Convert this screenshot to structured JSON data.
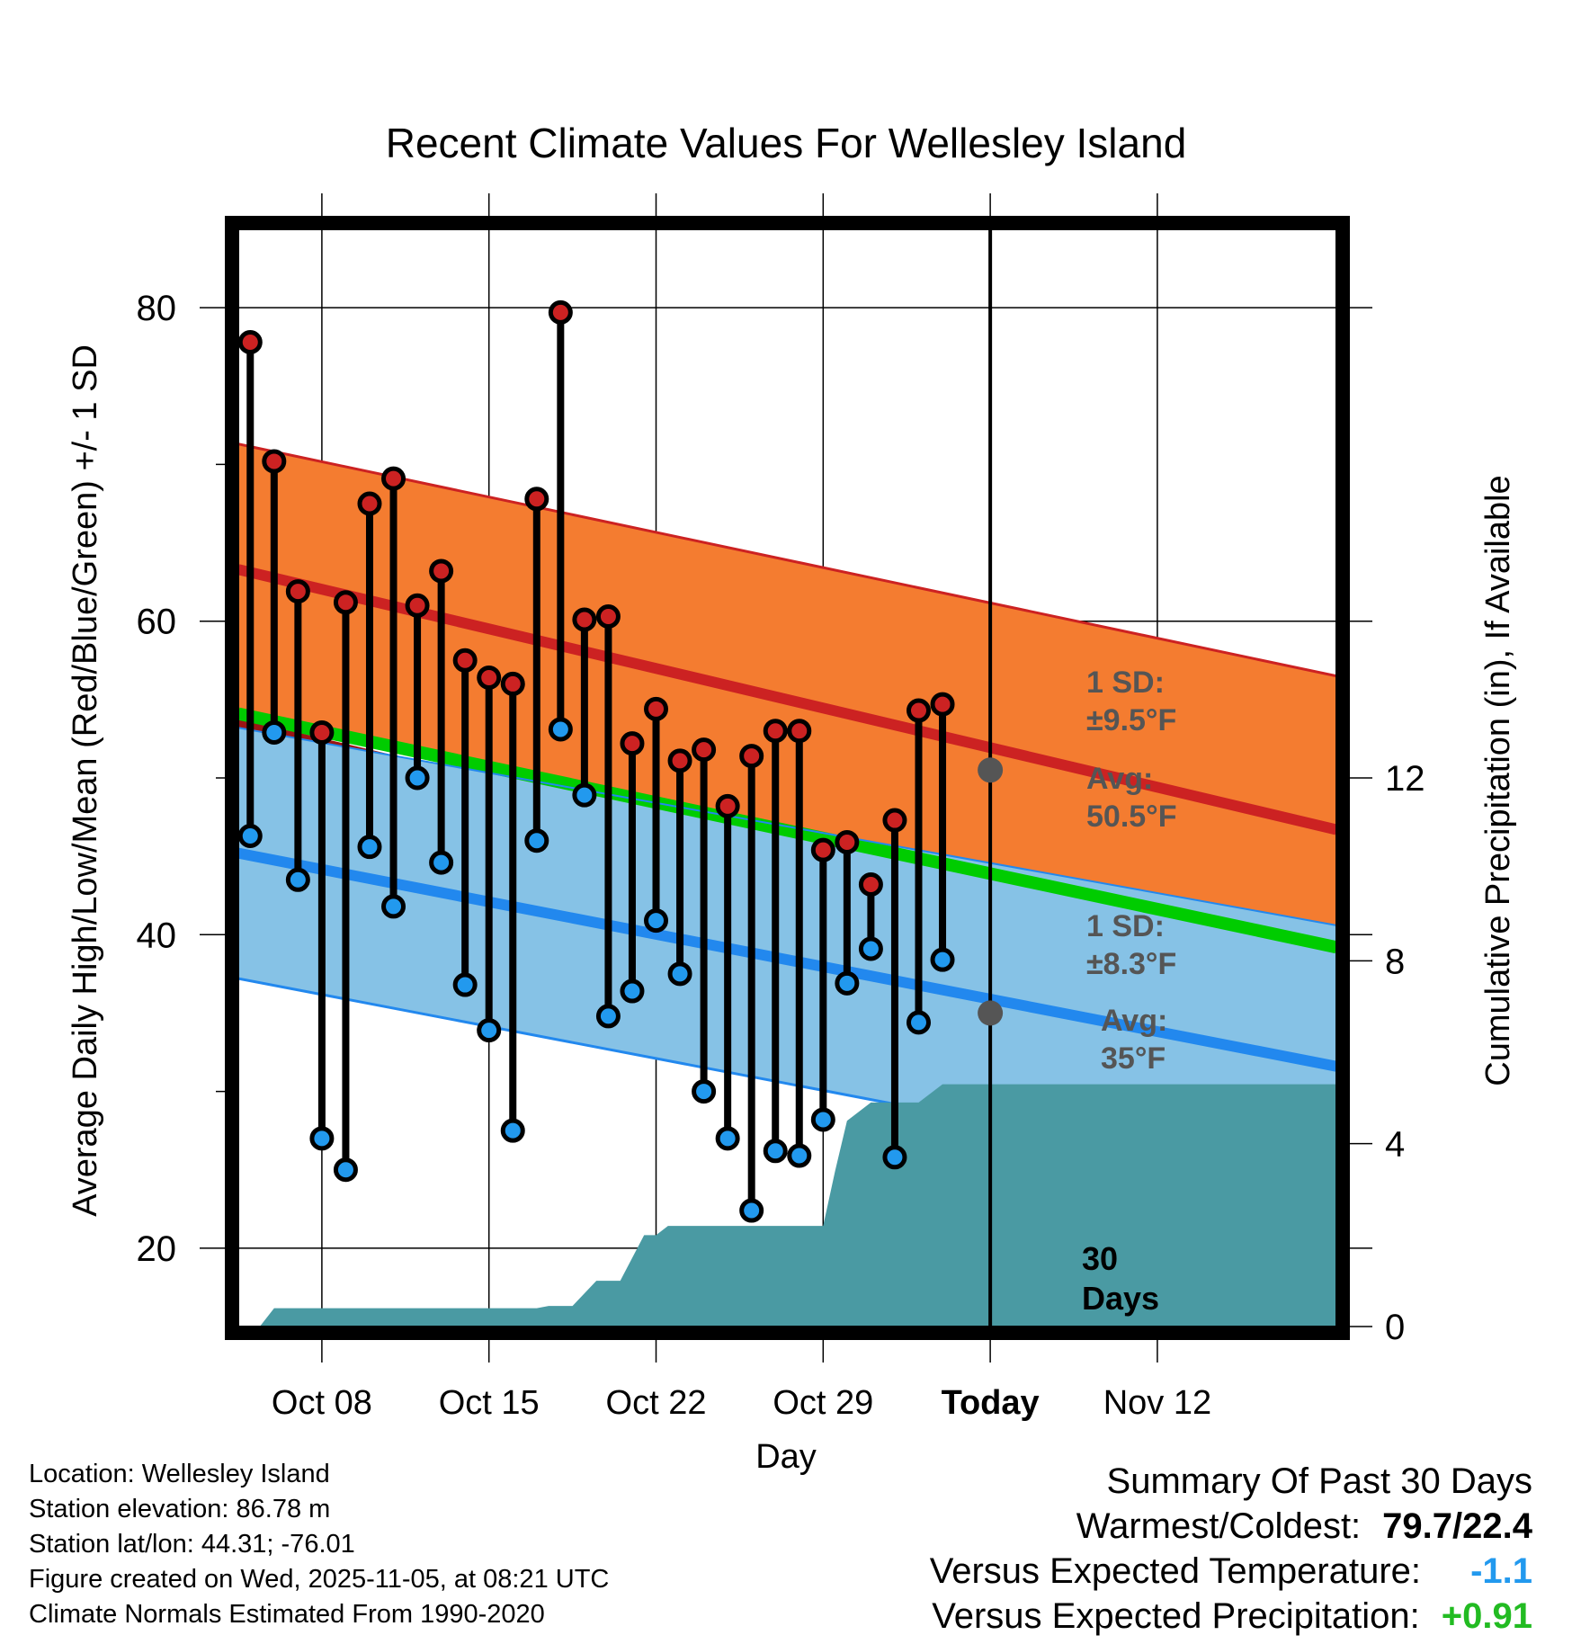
{
  "chart_data": {
    "type": "line",
    "title": "Recent Climate Values For Wellesley Island",
    "xlabel": "Day",
    "ylabel": "Average Daily High/Low/Mean (Red/Blue/Green) +/- 1 SD",
    "y2label": "Cumulative Precipitation (in), If Available",
    "ylim": [
      15,
      85
    ],
    "y2lim": [
      0,
      24
    ],
    "xlim": [
      4.5,
      50.5
    ],
    "grid": true,
    "yticks": [
      20,
      40,
      60,
      80
    ],
    "y2ticks": [
      0,
      4,
      8,
      12
    ],
    "x_tick_days": [
      8,
      15,
      22,
      29,
      36,
      43
    ],
    "x_tick_labels": [
      "Oct 08",
      "Oct 15",
      "Oct 22",
      "Oct 29",
      "Today",
      "Nov 12"
    ],
    "today_day": 36,
    "days": [
      5,
      6,
      7,
      8,
      9,
      10,
      11,
      12,
      13,
      14,
      15,
      16,
      17,
      18,
      19,
      20,
      21,
      22,
      23,
      24,
      25,
      26,
      27,
      28,
      29,
      30,
      31,
      32,
      33,
      34,
      35
    ],
    "series": [
      {
        "name": "Daily High",
        "color": "#cc2222",
        "values": [
          77.8,
          70.2,
          61.9,
          52.9,
          61.2,
          67.5,
          69.1,
          61.0,
          63.2,
          57.5,
          56.4,
          56.0,
          67.8,
          79.7,
          60.1,
          60.3,
          52.2,
          54.4,
          51.1,
          51.8,
          48.2,
          51.4,
          53.0,
          53.0,
          45.4,
          45.9,
          43.2,
          47.3,
          54.3,
          54.7,
          null
        ]
      },
      {
        "name": "Daily Low",
        "color": "#2288ee",
        "values": [
          46.3,
          52.9,
          43.5,
          27.0,
          25.0,
          45.6,
          41.8,
          50.0,
          44.6,
          36.8,
          33.9,
          27.5,
          46.0,
          53.1,
          48.9,
          34.8,
          36.4,
          40.9,
          37.5,
          30.0,
          27.0,
          22.4,
          26.2,
          25.9,
          28.2,
          36.9,
          39.1,
          25.8,
          34.4,
          38.4,
          null
        ]
      },
      {
        "name": "Normal High",
        "color": "#cc2222",
        "values_start": 63.3,
        "values_end": 46.7
      },
      {
        "name": "Normal High +/- 1 SD",
        "color": "#f47c30",
        "upper_start": 71.3,
        "upper_end": 56.5
      },
      {
        "name": "Normal Mean",
        "color": "#00cc00",
        "values_start": 54.1,
        "values_end": 39.2
      },
      {
        "name": "Normal Low",
        "color": "#2288ee",
        "values_start": 45.2,
        "values_end": 31.6
      },
      {
        "name": "Normal Low +/- 1 SD",
        "color": "#86c2e6",
        "lower_start": 37.2,
        "lower_end": 23.8
      },
      {
        "name": "Cumulative Precipitation",
        "color": "#4a9aa3",
        "axis": "y2",
        "x": [
          5.4,
          6.0,
          17.0,
          17.5,
          18.5,
          19.5,
          20.5,
          21.5,
          22.0,
          22.5,
          23.0,
          24.0,
          25.0,
          26.0,
          27.0,
          28.0,
          29.0,
          29.5,
          30.0,
          31.0,
          33.0,
          34.0,
          35.0,
          50.5
        ],
        "values": [
          0,
          0.4,
          0.4,
          0.45,
          0.45,
          1.0,
          1.0,
          2.0,
          2.0,
          2.2,
          2.2,
          2.2,
          2.2,
          2.2,
          2.2,
          2.2,
          2.2,
          3.4,
          4.5,
          4.9,
          4.9,
          5.3,
          5.3,
          5.3
        ]
      }
    ],
    "annotations": {
      "high_sd_label": "1 SD:",
      "high_sd_value": "±9.5°F",
      "high_avg_label": "Avg:",
      "high_avg_value": "50.5°F",
      "high_avg_dot": 50.5,
      "low_sd_label": "1 SD:",
      "low_sd_value": "±8.3°F",
      "low_avg_label": "Avg:",
      "low_avg_value": "35°F",
      "low_avg_dot": 35.0,
      "days_number": "30",
      "days_word": "Days"
    }
  },
  "footer": {
    "location": "Location: Wellesley Island",
    "elevation": "Station elevation: 86.78 m",
    "latlon": "Station lat/lon: 44.31; -76.01",
    "created": "Figure created on Wed, 2025-11-05, at 08:21 UTC",
    "normals": "Climate Normals Estimated From 1990-2020"
  },
  "summary": {
    "heading": "Summary Of Past 30 Days",
    "warmest_label": "Warmest/Coldest:",
    "warmest_value": "79.7/22.4",
    "temp_label": "Versus Expected Temperature:",
    "temp_value": "-1.1",
    "temp_color": "#2299ee",
    "precip_label": "Versus Expected Precipitation:",
    "precip_value": "+0.91",
    "precip_color": "#22bb22"
  }
}
